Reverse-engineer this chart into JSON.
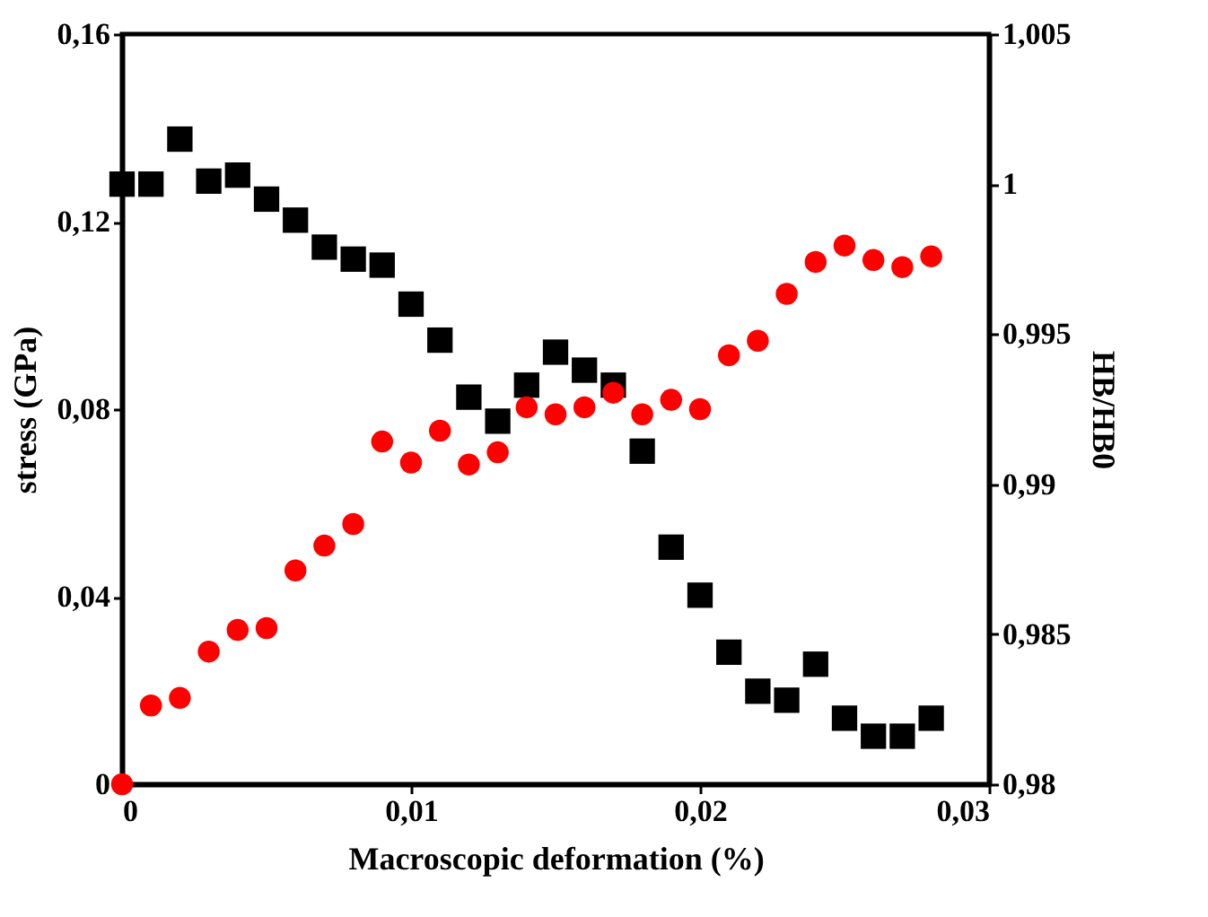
{
  "chart_data": {
    "type": "scatter",
    "xlabel": "Macroscopic deformation (%)",
    "ylabel": "stress (GPa)",
    "y2label": "HB/HB0",
    "x": [
      0,
      0.001,
      0.002,
      0.003,
      0.004,
      0.005,
      0.006,
      0.007,
      0.008,
      0.009,
      0.01,
      0.011,
      0.012,
      0.013,
      0.014,
      0.015,
      0.016,
      0.017,
      0.018,
      0.019,
      0.02,
      0.021,
      0.022,
      0.023,
      0.024,
      0.025,
      0.026,
      0.027,
      0.028
    ],
    "series": [
      {
        "color": "#ff0000",
        "marker": "circle",
        "values": [
          0,
          0.0168,
          0.0184,
          0.0283,
          0.0329,
          0.0333,
          0.0456,
          0.0509,
          0.0555,
          0.0731,
          0.0686,
          0.0754,
          0.0682,
          0.0708,
          0.0804,
          0.0789,
          0.0804,
          0.0835,
          0.0789,
          0.082,
          0.08,
          0.0915,
          0.0946,
          0.1046,
          0.1114,
          0.1149,
          0.1118,
          0.1103,
          0.1126
        ]
      },
      {
        "color": "#000000",
        "marker": "square",
        "axis": "y2",
        "values": [
          1.0,
          1.0,
          1.0015,
          1.0001,
          1.0003,
          0.9995,
          0.9988,
          0.9979,
          0.9975,
          0.9973,
          0.996,
          0.9948,
          0.9929,
          0.9921,
          0.9933,
          0.9944,
          0.9938,
          0.9933,
          0.9911,
          0.9879,
          0.9863,
          0.9844,
          0.9831,
          0.9828,
          0.984,
          0.9822,
          0.9816,
          0.9816,
          0.9822
        ]
      }
    ],
    "xlim": [
      0,
      0.03
    ],
    "xticks": [
      {
        "value": 0,
        "label": "0"
      },
      {
        "value": 0.01,
        "label": "0,01"
      },
      {
        "value": 0.02,
        "label": "0,02"
      },
      {
        "value": 0.03,
        "label": "0,03"
      }
    ],
    "ylim": [
      0,
      0.16
    ],
    "yticks": [
      {
        "value": 0,
        "label": "0"
      },
      {
        "value": 0.04,
        "label": "0,04"
      },
      {
        "value": 0.08,
        "label": "0,08"
      },
      {
        "value": 0.12,
        "label": "0,12"
      },
      {
        "value": 0.16,
        "label": "0,16"
      }
    ],
    "y2lim": [
      0.98,
      1.005
    ],
    "y2ticks": [
      {
        "value": 0.98,
        "label": "0,98"
      },
      {
        "value": 0.985,
        "label": "0,985"
      },
      {
        "value": 0.99,
        "label": "0,99"
      },
      {
        "value": 0.995,
        "label": "0,995"
      },
      {
        "value": 1,
        "label": "1"
      },
      {
        "value": 1.005,
        "label": "1,005"
      }
    ],
    "grid": false
  }
}
